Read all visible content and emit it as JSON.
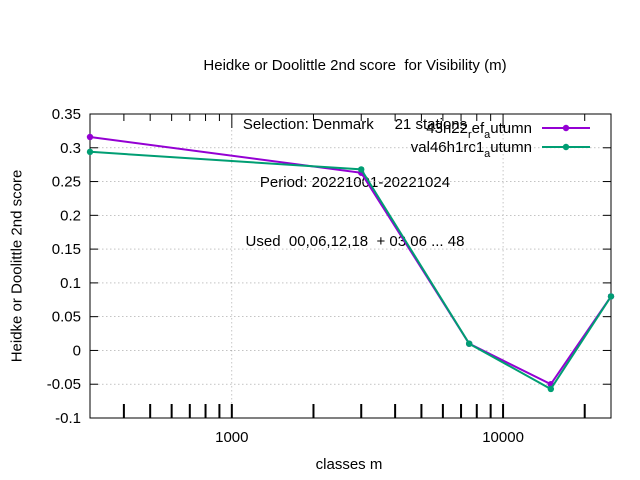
{
  "chart_data": {
    "type": "line",
    "title_lines": [
      "Heidke or Doolittle 2nd score  for Visibility (m)",
      "Selection: Denmark     21 stations",
      "Period: 20221001-20221024",
      "Used  00,06,12,18  + 03 06 ... 48"
    ],
    "xlabel": "classes m",
    "ylabel": "Heidke or Doolittle 2nd score",
    "x_scale": "log",
    "xlim": [
      300,
      25000
    ],
    "ylim": [
      -0.1,
      0.35
    ],
    "x_ticks": [
      1000,
      10000
    ],
    "x_tick_labels": [
      "1000",
      "10000"
    ],
    "y_ticks": [
      -0.1,
      -0.05,
      0,
      0.05,
      0.1,
      0.15,
      0.2,
      0.25,
      0.3,
      0.35
    ],
    "y_tick_labels": [
      "-0.1",
      "-0.05",
      "0",
      "0.05",
      "0.1",
      "0.15",
      "0.2",
      "0.25",
      "0.3",
      "0.35"
    ],
    "grid": true,
    "legend_position": "top-right",
    "series": [
      {
        "name_main": "43h22",
        "name_sub1": "r",
        "name_mid": "ef",
        "name_sub2": "a",
        "name_tail": "utumn",
        "color": "#9400d3",
        "x": [
          300,
          3000,
          7500,
          15000,
          25000
        ],
        "values": [
          0.316,
          0.263,
          0.01,
          -0.05,
          0.08
        ]
      },
      {
        "name_main": "val46h1rc1",
        "name_sub1": "",
        "name_mid": "",
        "name_sub2": "a",
        "name_tail": "utumn",
        "color": "#009e73",
        "x": [
          300,
          3000,
          7500,
          15000,
          25000
        ],
        "values": [
          0.294,
          0.268,
          0.01,
          -0.057,
          0.08
        ]
      }
    ]
  }
}
